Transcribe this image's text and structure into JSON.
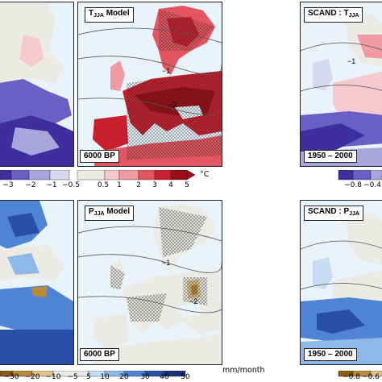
{
  "top_left": {
    "legend_labels": [
      "−3",
      "−2",
      "−1",
      "−0.5"
    ]
  },
  "top_middle": {
    "title_main": "T",
    "title_sub": "JJA",
    "title_rest": " Model",
    "period": "6000 BP",
    "contour_labels": [
      "−1",
      "−2"
    ]
  },
  "top_right": {
    "title_main": "SCAND : T",
    "title_sub": "JJA",
    "period": "1950 – 2000",
    "contour_labels": [
      "−1"
    ],
    "legend_labels": [
      "−0.8",
      "−0.4"
    ]
  },
  "bottom_left": {
    "legend_labels": [
      "−30",
      "−20",
      "−10",
      "−5"
    ]
  },
  "bottom_middle": {
    "title_main": "P",
    "title_sub": "JJA",
    "title_rest": " Model",
    "period": "6000 BP",
    "contour_labels": [
      "−1",
      "−2"
    ]
  },
  "bottom_right": {
    "title_main": "SCAND : P",
    "title_sub": "JJA",
    "period": "1950 – 2000",
    "legend_labels": [
      "−0.8",
      "−0.6"
    ]
  },
  "temp_colorbar": {
    "labels": [
      "−1",
      "−0.5",
      "0.5",
      "1",
      "2",
      "3",
      "4",
      "5"
    ],
    "unit": "°C",
    "colors": {
      "blue_dark": "#3f2f9e",
      "blue_mid": "#6a5fc4",
      "blue_light": "#a9a6dd",
      "blue_pale": "#d6d8ef",
      "neutral": "#ecebe3",
      "red_pale": "#f6c9cf",
      "red_light": "#f09aa3",
      "red_mid": "#e35561",
      "red_dark": "#c8202e",
      "red_deep": "#9b0d18"
    }
  },
  "precip_colorbar": {
    "labels": [
      "5",
      "10",
      "20",
      "30",
      "40",
      "50"
    ],
    "unit": "mm/month",
    "colors": {
      "brown_dark": "#8a5a16",
      "brown_mid": "#b88a3a",
      "brown_light": "#dcc48a",
      "neutral": "#ecebe3",
      "blue_pale": "#c7dcf2",
      "blue_light": "#8db8e8",
      "blue_mid": "#4f84d4",
      "blue_dark": "#2a4fa8",
      "blue_deep": "#1c2f7a"
    }
  }
}
